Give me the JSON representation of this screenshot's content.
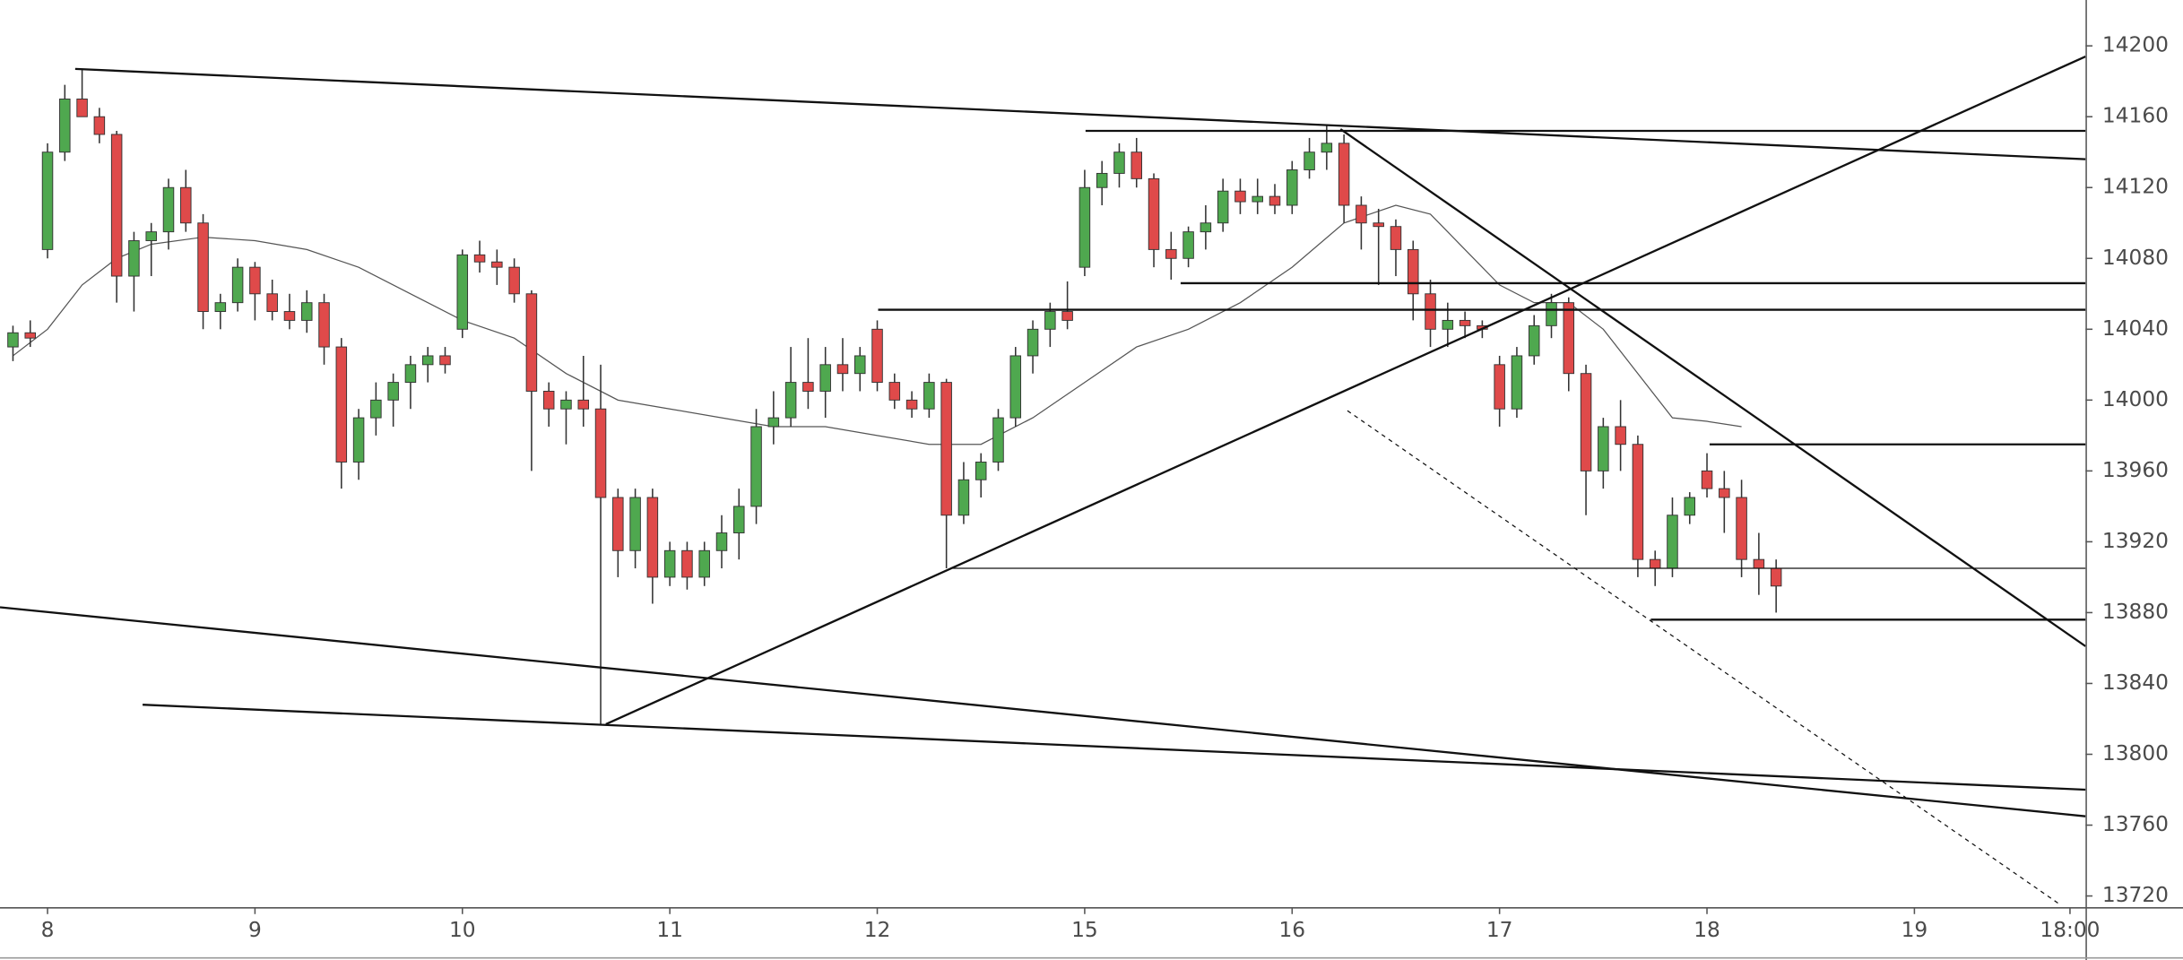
{
  "chart_data": {
    "type": "candlestick",
    "up_color": "#4fa84f",
    "down_color": "#df4a4a",
    "wick_color": "#333333",
    "xlim": [
      -5.5,
      235.8
    ],
    "ylim": [
      13713.7,
      14225.9
    ],
    "yticks": [
      13720,
      13760,
      13800,
      13840,
      13880,
      13920,
      13960,
      14000,
      14040,
      14080,
      14120,
      14160,
      14200
    ],
    "xticks": [
      {
        "value": 0,
        "label": "8"
      },
      {
        "value": 24,
        "label": "9"
      },
      {
        "value": 48,
        "label": "10"
      },
      {
        "value": 72,
        "label": "11"
      },
      {
        "value": 96,
        "label": "12"
      },
      {
        "value": 120,
        "label": "15"
      },
      {
        "value": 144,
        "label": "16"
      },
      {
        "value": 168,
        "label": "17"
      },
      {
        "value": 192,
        "label": "18"
      },
      {
        "value": 216,
        "label": "19"
      },
      {
        "value": 234,
        "label": "18:00"
      }
    ],
    "candles": {
      "x": [
        -4,
        -2,
        0,
        2,
        4,
        6,
        8,
        10,
        12,
        14,
        16,
        18,
        20,
        22,
        24,
        26,
        28,
        30,
        32,
        34,
        36,
        38,
        40,
        42,
        44,
        46,
        48,
        50,
        52,
        54,
        56,
        58,
        60,
        62,
        64,
        66,
        68,
        70,
        72,
        74,
        76,
        78,
        80,
        82,
        84,
        86,
        88,
        90,
        92,
        94,
        96,
        98,
        100,
        102,
        104,
        106,
        108,
        110,
        112,
        114,
        116,
        118,
        120,
        122,
        124,
        126,
        128,
        130,
        132,
        134,
        136,
        138,
        140,
        142,
        144,
        146,
        148,
        150,
        152,
        154,
        156,
        158,
        160,
        162,
        164,
        166,
        168,
        170,
        172,
        174,
        176,
        178,
        180,
        182,
        184,
        186,
        188,
        190,
        192,
        194,
        196,
        198,
        200
      ],
      "open": [
        14030,
        14038,
        14085,
        14140,
        14170,
        14160,
        14150,
        14070,
        14090,
        14095,
        14120,
        14100,
        14050,
        14055,
        14075,
        14060,
        14050,
        14045,
        14055,
        14030,
        13965,
        13990,
        14000,
        14010,
        14020,
        14025,
        14040,
        14082,
        14078,
        14075,
        14060,
        14005,
        13995,
        14000,
        13995,
        13945,
        13915,
        13945,
        13900,
        13915,
        13900,
        13915,
        13925,
        13940,
        13985,
        13990,
        14010,
        14005,
        14020,
        14015,
        14040,
        14010,
        14000,
        13995,
        14010,
        13935,
        13955,
        13965,
        13990,
        14025,
        14040,
        14050,
        14075,
        14120,
        14128,
        14140,
        14125,
        14085,
        14080,
        14095,
        14100,
        14118,
        14112,
        14115,
        14110,
        14130,
        14140,
        14145,
        14110,
        14100,
        14098,
        14085,
        14060,
        14040,
        14045,
        14042,
        14020,
        13995,
        14025,
        14042,
        14055,
        14015,
        13960,
        13985,
        13975,
        13910,
        13905,
        13935,
        13960,
        13950,
        13945,
        13910,
        13905
      ],
      "high": [
        14042,
        14045,
        14145,
        14178,
        14187,
        14165,
        14152,
        14095,
        14100,
        14125,
        14130,
        14105,
        14060,
        14080,
        14078,
        14068,
        14060,
        14062,
        14060,
        14035,
        13995,
        14010,
        14015,
        14025,
        14030,
        14030,
        14085,
        14090,
        14085,
        14080,
        14062,
        14010,
        14005,
        14025,
        14020,
        13950,
        13950,
        13950,
        13920,
        13920,
        13920,
        13935,
        13950,
        13995,
        14005,
        14030,
        14035,
        14030,
        14035,
        14030,
        14045,
        14015,
        14005,
        14015,
        14012,
        13965,
        13970,
        13995,
        14030,
        14045,
        14055,
        14067,
        14130,
        14135,
        14145,
        14148,
        14128,
        14095,
        14098,
        14110,
        14125,
        14125,
        14125,
        14122,
        14135,
        14148,
        14155,
        14150,
        14115,
        14108,
        14102,
        14090,
        14068,
        14055,
        14050,
        14045,
        14025,
        14030,
        14048,
        14060,
        14058,
        14020,
        13990,
        14000,
        13980,
        13915,
        13945,
        13948,
        13970,
        13960,
        13955,
        13925,
        13910
      ],
      "low": [
        14022,
        14030,
        14080,
        14135,
        14160,
        14145,
        14055,
        14050,
        14070,
        14085,
        14095,
        14040,
        14040,
        14050,
        14045,
        14045,
        14040,
        14038,
        14020,
        13950,
        13955,
        13980,
        13985,
        13995,
        14010,
        14015,
        14035,
        14072,
        14065,
        14055,
        13960,
        13985,
        13975,
        13985,
        13817,
        13900,
        13905,
        13885,
        13895,
        13893,
        13895,
        13905,
        13910,
        13930,
        13975,
        13985,
        13995,
        13990,
        14005,
        14005,
        14005,
        13995,
        13990,
        13990,
        13905,
        13930,
        13945,
        13960,
        13985,
        14015,
        14030,
        14040,
        14070,
        14110,
        14120,
        14120,
        14075,
        14068,
        14075,
        14085,
        14095,
        14105,
        14105,
        14105,
        14105,
        14125,
        14130,
        14100,
        14085,
        14065,
        14070,
        14045,
        14030,
        14030,
        14035,
        14035,
        13985,
        13990,
        14020,
        14035,
        14005,
        13935,
        13950,
        13960,
        13900,
        13895,
        13900,
        13930,
        13945,
        13925,
        13900,
        13890,
        13880
      ],
      "close": [
        14038,
        14035,
        14140,
        14170,
        14160,
        14150,
        14070,
        14090,
        14095,
        14120,
        14100,
        14050,
        14055,
        14075,
        14060,
        14050,
        14045,
        14055,
        14030,
        13965,
        13990,
        14000,
        14010,
        14020,
        14025,
        14020,
        14082,
        14078,
        14075,
        14060,
        14005,
        13995,
        14000,
        13995,
        13945,
        13915,
        13945,
        13900,
        13915,
        13900,
        13915,
        13925,
        13940,
        13985,
        13990,
        14010,
        14005,
        14020,
        14015,
        14025,
        14010,
        14000,
        13995,
        14010,
        13935,
        13955,
        13965,
        13990,
        14025,
        14040,
        14050,
        14045,
        14120,
        14128,
        14140,
        14125,
        14085,
        14080,
        14095,
        14100,
        14118,
        14112,
        14115,
        14110,
        14130,
        14140,
        14145,
        14110,
        14100,
        14098,
        14085,
        14060,
        14040,
        14045,
        14042,
        14040,
        13995,
        14025,
        14042,
        14055,
        14015,
        13960,
        13985,
        13975,
        13910,
        13905,
        13935,
        13945,
        13950,
        13945,
        13910,
        13905,
        13895
      ]
    },
    "moving_average": {
      "color": "#555555",
      "x": [
        -4,
        0,
        4,
        8,
        12,
        18,
        24,
        30,
        36,
        42,
        48,
        54,
        60,
        66,
        72,
        78,
        84,
        90,
        96,
        102,
        108,
        114,
        120,
        126,
        132,
        138,
        144,
        150,
        156,
        160,
        164,
        168,
        172,
        176,
        180,
        184,
        188,
        192,
        196
      ],
      "values": [
        14025,
        14040,
        14065,
        14080,
        14088,
        14092,
        14090,
        14085,
        14075,
        14060,
        14045,
        14035,
        14015,
        14000,
        13995,
        13990,
        13985,
        13985,
        13980,
        13975,
        13975,
        13990,
        14010,
        14030,
        14040,
        14055,
        14075,
        14100,
        14110,
        14105,
        14085,
        14065,
        14055,
        14055,
        14040,
        14015,
        13990,
        13988,
        13985
      ]
    },
    "drawings": [
      {
        "x": [
          3.2,
          235.8
        ],
        "y": [
          14187,
          14136
        ]
      },
      {
        "x": [
          120.1,
          235.8
        ],
        "y": [
          14152,
          14152
        ]
      },
      {
        "x": [
          131.1,
          235.8
        ],
        "y": [
          14066,
          14066
        ]
      },
      {
        "x": [
          96.1,
          235.8
        ],
        "y": [
          14051,
          14051
        ]
      },
      {
        "x": [
          192.3,
          235.8
        ],
        "y": [
          13975,
          13975
        ]
      },
      {
        "x": [
          104.7,
          235.8
        ],
        "y": [
          13905,
          13905
        ],
        "thin": true
      },
      {
        "x": [
          185.5,
          235.8
        ],
        "y": [
          13876,
          13876
        ]
      },
      {
        "x": [
          149.6,
          235.8
        ],
        "y": [
          14153,
          13861
        ]
      },
      {
        "x": [
          64.6,
          235.8
        ],
        "y": [
          13817,
          14194
        ]
      },
      {
        "x": [
          -5.5,
          235.8
        ],
        "y": [
          13883,
          13765
        ]
      },
      {
        "x": [
          11,
          235.8
        ],
        "y": [
          13828,
          13780
        ]
      },
      {
        "x": [
          150.4,
          232.9
        ],
        "y": [
          13994,
          13715
        ],
        "dashed": true
      }
    ]
  }
}
